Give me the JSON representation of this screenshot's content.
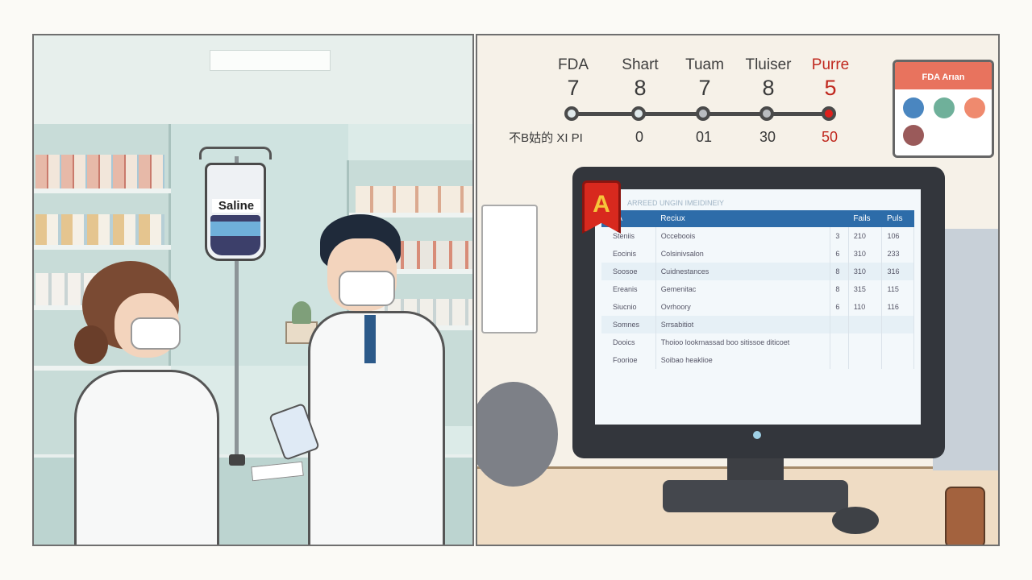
{
  "left_scene": {
    "iv_bag_label": "Saline"
  },
  "timeline": {
    "stages": [
      {
        "label": "FDA",
        "number": "7",
        "bottom": "不B姑的 XI PI",
        "node_color": "#dfe8ea"
      },
      {
        "label": "Shart",
        "number": "8",
        "bottom": "0",
        "node_color": "#dfe8ea"
      },
      {
        "label": "Tuam",
        "number": "7",
        "bottom": "01",
        "node_color": "#b9bcc0"
      },
      {
        "label": "Tluiser",
        "number": "8",
        "bottom": "30",
        "node_color": "#b9bcc0"
      },
      {
        "label": "Purre",
        "number": "5",
        "bottom": "50",
        "node_color": "#e0201c",
        "highlight": true
      }
    ],
    "highlight_color": "#c0281e"
  },
  "calendar": {
    "title": "FDA Arıan",
    "dot_colors": [
      "#4a86c0",
      "#6fb09a",
      "#ef8a6e",
      "#9a5a5a"
    ]
  },
  "monitor": {
    "badge_letter": "A",
    "screen_title": "ARREED UNGIN IMEIDINEIY",
    "table": {
      "headers": [
        "FDA",
        "Reciux",
        "",
        "Fails",
        "Puls"
      ],
      "rows": [
        [
          "Steniis",
          "Occeboois",
          "3",
          "210",
          "106"
        ],
        [
          "Eocinis",
          "Colsinivsalon",
          "6",
          "310",
          "233"
        ],
        [
          "Soosoe",
          "Cuidnestances",
          "8",
          "310",
          "316"
        ],
        [
          "Ereanis",
          "Gemenitac",
          "8",
          "315",
          "115"
        ],
        [
          "Siucnio",
          "Ovrhoory",
          "6",
          "110",
          "116"
        ],
        [
          "Somnes",
          "Srrsabitiot",
          "",
          "",
          ""
        ],
        [
          "Dooics",
          "Thoioo lookrnassad boo sitissoe diticoet",
          "",
          "",
          ""
        ],
        [
          "Foorioe",
          "Soibao heaklioe",
          "",
          "",
          ""
        ]
      ]
    }
  }
}
